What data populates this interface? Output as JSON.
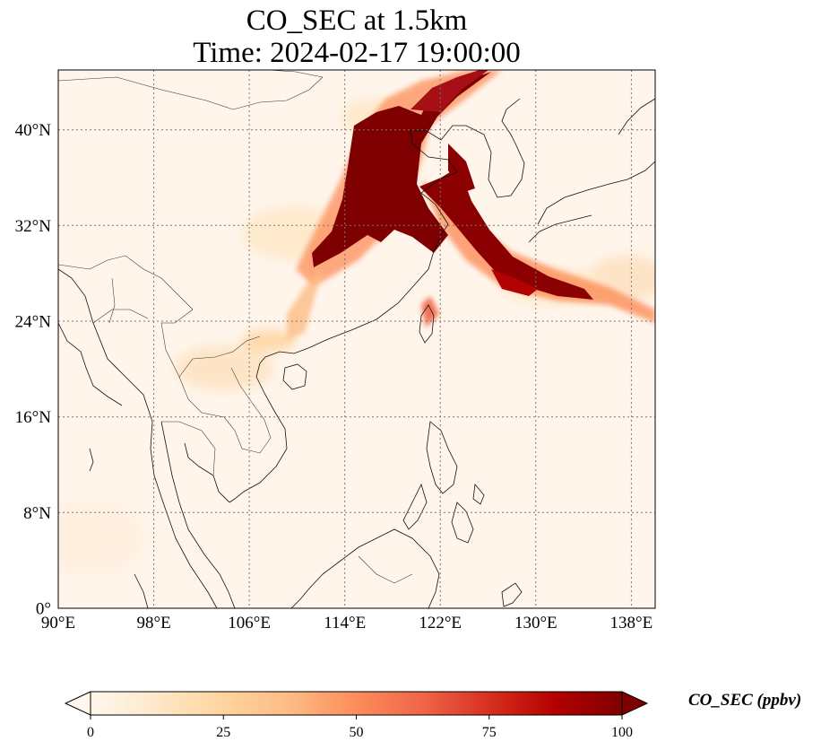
{
  "title": {
    "line1": "CO_SEC at 1.5km",
    "line2": "Time: 2024-02-17 19:00:00"
  },
  "map": {
    "lon_range": [
      90,
      140
    ],
    "lat_range": [
      0,
      45
    ],
    "lon_ticks": [
      "90°E",
      "98°E",
      "106°E",
      "114°E",
      "122°E",
      "130°E",
      "138°E"
    ],
    "lat_ticks": [
      "0°",
      "8°N",
      "16°N",
      "24°N",
      "32°N",
      "40°N"
    ],
    "gridlines": true,
    "background_color": "#fff5eb"
  },
  "colorbar": {
    "label": "CO_SEC (ppbv)",
    "ticks": [
      "0",
      "25",
      "50",
      "75",
      "100"
    ],
    "range": [
      0,
      100
    ],
    "colormap": "OrRd",
    "colors": [
      "#fff7ec",
      "#fee8c8",
      "#fdd49e",
      "#fdbb84",
      "#fc8d59",
      "#ef6548",
      "#d7301f",
      "#b30000",
      "#7f0000"
    ]
  }
}
